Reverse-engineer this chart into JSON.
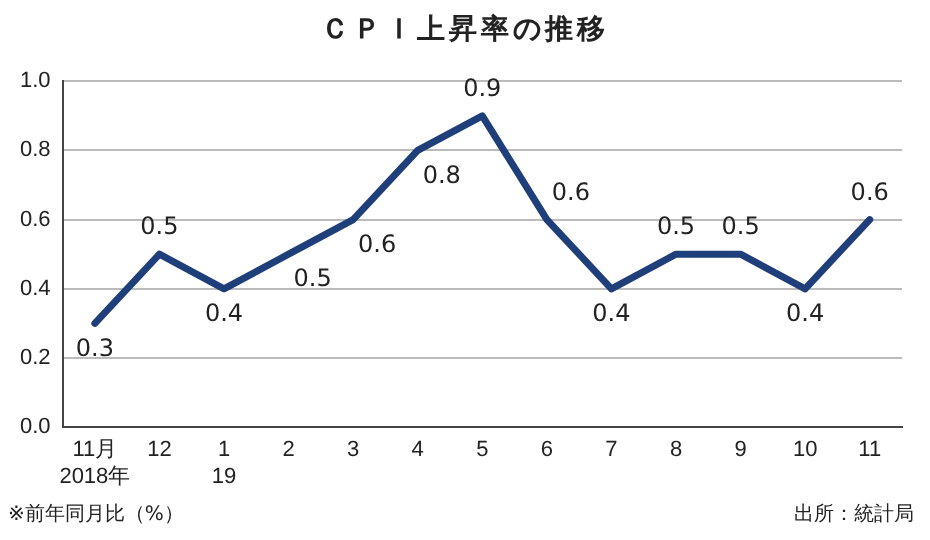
{
  "chart_data": {
    "type": "line",
    "title": "ＣＰＩ上昇率の推移",
    "categories": [
      "11月\n2018年",
      "12",
      "1\n19",
      "2",
      "3",
      "4",
      "5",
      "6",
      "7",
      "8",
      "9",
      "10",
      "11"
    ],
    "values": [
      0.3,
      0.5,
      0.4,
      0.5,
      0.6,
      0.8,
      0.9,
      0.6,
      0.4,
      0.5,
      0.5,
      0.4,
      0.6
    ],
    "color": "#1f3f7a",
    "ylim": [
      0,
      1
    ],
    "yticks": [
      {
        "value": 0,
        "label": "0.0"
      },
      {
        "value": 0.2,
        "label": "0.2"
      },
      {
        "value": 0.4,
        "label": "0.4"
      },
      {
        "value": 0.6,
        "label": "0.6"
      },
      {
        "value": 0.8,
        "label": "0.8"
      },
      {
        "value": 1,
        "label": "1.0"
      }
    ],
    "grid": "y",
    "legend": false,
    "marker": "none",
    "line_style": "solid",
    "data_labels": true,
    "annotations": [
      "※前年同月比（%）",
      "出所：統計局"
    ]
  }
}
